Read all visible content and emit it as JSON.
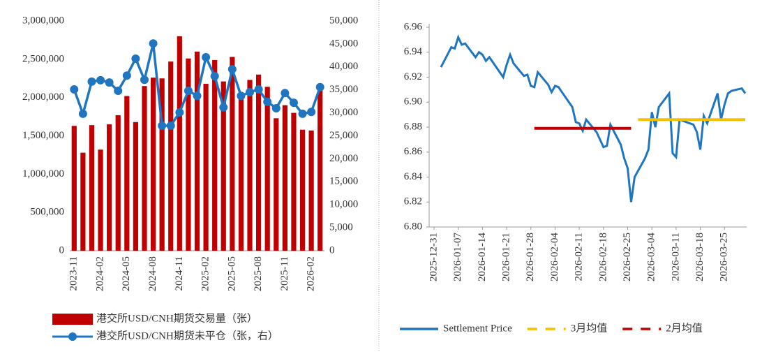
{
  "chart_data": [
    {
      "type": "bar-line",
      "categories": [
        "2023-11",
        null,
        null,
        "2024-02",
        null,
        null,
        "2024-05",
        null,
        null,
        "2024-08",
        null,
        null,
        "2024-11",
        null,
        null,
        "2025-02",
        null,
        null,
        "2025-05",
        null,
        null,
        "2025-08",
        null,
        null,
        "2025-11",
        null,
        null,
        "2026-02",
        null
      ],
      "series": [
        {
          "name": "港交所USD/CNH期货交易量（张）",
          "color": "#c00000",
          "axis": "y",
          "values": [
            1630000,
            1280000,
            1640000,
            1320000,
            1650000,
            1770000,
            2020000,
            1680000,
            2150000,
            2260000,
            2250000,
            2470000,
            2800000,
            2510000,
            2600000,
            2180000,
            2490000,
            2210000,
            2530000,
            2060000,
            2230000,
            2300000,
            2140000,
            1730000,
            1900000,
            1800000,
            1580000,
            1570000,
            2100000
          ]
        },
        {
          "name": "港交所USD/CNH期货未平仓（张，右）",
          "color": "#1f75c0",
          "axis": "y2",
          "values": [
            35100,
            29800,
            36800,
            37100,
            36600,
            34800,
            38100,
            41800,
            37200,
            45100,
            27200,
            27200,
            30100,
            34800,
            33700,
            42100,
            38000,
            31200,
            39500,
            33700,
            34500,
            35100,
            32400,
            31000,
            34300,
            32200,
            29800,
            30200,
            35600
          ]
        }
      ],
      "ylim": [
        0,
        3000000
      ],
      "yticks": [
        {
          "value": 0,
          "label": "0"
        },
        {
          "value": 500000,
          "label": "500,000"
        },
        {
          "value": 1000000,
          "label": "1,000,000"
        },
        {
          "value": 1500000,
          "label": "1,500,000"
        },
        {
          "value": 2000000,
          "label": "2,000,000"
        },
        {
          "value": 2500000,
          "label": "2,500,000"
        },
        {
          "value": 3000000,
          "label": "3,000,000"
        }
      ],
      "y2lim": [
        0,
        50000
      ],
      "y2ticks": [
        0,
        {
          "value": 5000,
          "label": "5,000"
        },
        {
          "value": 10000,
          "label": "10,000"
        },
        {
          "value": 15000,
          "label": "15,000"
        },
        {
          "value": 20000,
          "label": "20,000"
        },
        {
          "value": 25000,
          "label": "25,000"
        },
        {
          "value": 30000,
          "label": "30,000"
        },
        {
          "value": 35000,
          "label": "35,000"
        },
        {
          "value": 40000,
          "label": "40,000"
        },
        {
          "value": 45000,
          "label": "45,000"
        },
        {
          "value": 50000,
          "label": "50,000"
        }
      ]
    },
    {
      "type": "line",
      "series": [
        {
          "name": "Settlement Price",
          "color": "#1f75c0",
          "dash": false,
          "x": [
            "2026-01-02",
            "2026-01-05",
            "2026-01-06",
            "2026-01-07",
            "2026-01-08",
            "2026-01-09",
            "2026-01-12",
            "2026-01-13",
            "2026-01-14",
            "2026-01-15",
            "2026-01-16",
            "2026-01-19",
            "2026-01-20",
            "2026-01-21",
            "2026-01-22",
            "2026-01-23",
            "2026-01-26",
            "2026-01-27",
            "2026-01-28",
            "2026-01-29",
            "2026-01-30",
            "2026-02-02",
            "2026-02-03",
            "2026-02-04",
            "2026-02-05",
            "2026-02-06",
            "2026-02-09",
            "2026-02-10",
            "2026-02-11",
            "2026-02-12",
            "2026-02-13",
            "2026-02-16",
            "2026-02-17",
            "2026-02-18",
            "2026-02-19",
            "2026-02-20",
            "2026-02-23",
            "2026-02-24",
            "2026-02-25",
            "2026-02-26",
            "2026-02-27",
            "2026-03-02",
            "2026-03-03",
            "2026-03-04",
            "2026-03-05",
            "2026-03-06",
            "2026-03-09",
            "2026-03-10",
            "2026-03-11",
            "2026-03-12",
            "2026-03-13",
            "2026-03-16",
            "2026-03-17",
            "2026-03-18",
            "2026-03-19",
            "2026-03-20",
            "2026-03-23",
            "2026-03-24",
            "2026-03-25",
            "2026-03-26",
            "2026-03-27",
            "2026-03-30",
            "2026-03-31"
          ],
          "values": [
            6.928,
            6.944,
            6.943,
            6.952,
            6.946,
            6.947,
            6.936,
            6.94,
            6.938,
            6.933,
            6.936,
            6.924,
            6.92,
            6.93,
            6.938,
            6.931,
            6.921,
            6.922,
            6.913,
            6.912,
            6.924,
            6.914,
            6.908,
            6.913,
            6.912,
            6.908,
            6.896,
            6.884,
            6.883,
            6.877,
            6.886,
            6.876,
            6.87,
            6.864,
            6.865,
            6.882,
            6.866,
            6.855,
            6.847,
            6.82,
            6.84,
            6.855,
            6.862,
            6.892,
            6.88,
            6.896,
            6.907,
            6.859,
            6.856,
            6.886,
            6.885,
            6.882,
            6.876,
            6.862,
            6.889,
            6.883,
            6.907,
            6.886,
            6.898,
            6.907,
            6.909,
            6.911,
            6.907
          ]
        },
        {
          "name": "3月均值",
          "color": "#f5c000",
          "dash": true,
          "x": [
            "2026-02-28",
            "2026-03-31"
          ],
          "values": [
            6.886,
            6.886
          ]
        },
        {
          "name": "2月均值",
          "color": "#c00000",
          "dash": true,
          "x": [
            "2026-01-29",
            "2026-02-26"
          ],
          "values": [
            6.879,
            6.879
          ]
        }
      ],
      "xlim": [
        "2025-12-31",
        "2026-03-31"
      ],
      "xticks": [
        "2025-12-31",
        "2026-01-07",
        "2026-01-14",
        "2026-01-21",
        "2026-01-28",
        "2026-02-04",
        "2026-02-11",
        "2026-02-18",
        "2026-02-25",
        "2026-03-04",
        "2026-03-11",
        "2026-03-18",
        "2026-03-25"
      ],
      "ylim": [
        6.8,
        6.96
      ],
      "yticks": [
        {
          "value": 6.8,
          "label": "6.80"
        },
        {
          "value": 6.82,
          "label": "6.82"
        },
        {
          "value": 6.84,
          "label": "6.84"
        },
        {
          "value": 6.86,
          "label": "6.86"
        },
        {
          "value": 6.88,
          "label": "6.88"
        },
        {
          "value": 6.9,
          "label": "6.90"
        },
        {
          "value": 6.92,
          "label": "6.92"
        },
        {
          "value": 6.94,
          "label": "6.94"
        },
        {
          "value": 6.96,
          "label": "6.96"
        }
      ]
    }
  ]
}
